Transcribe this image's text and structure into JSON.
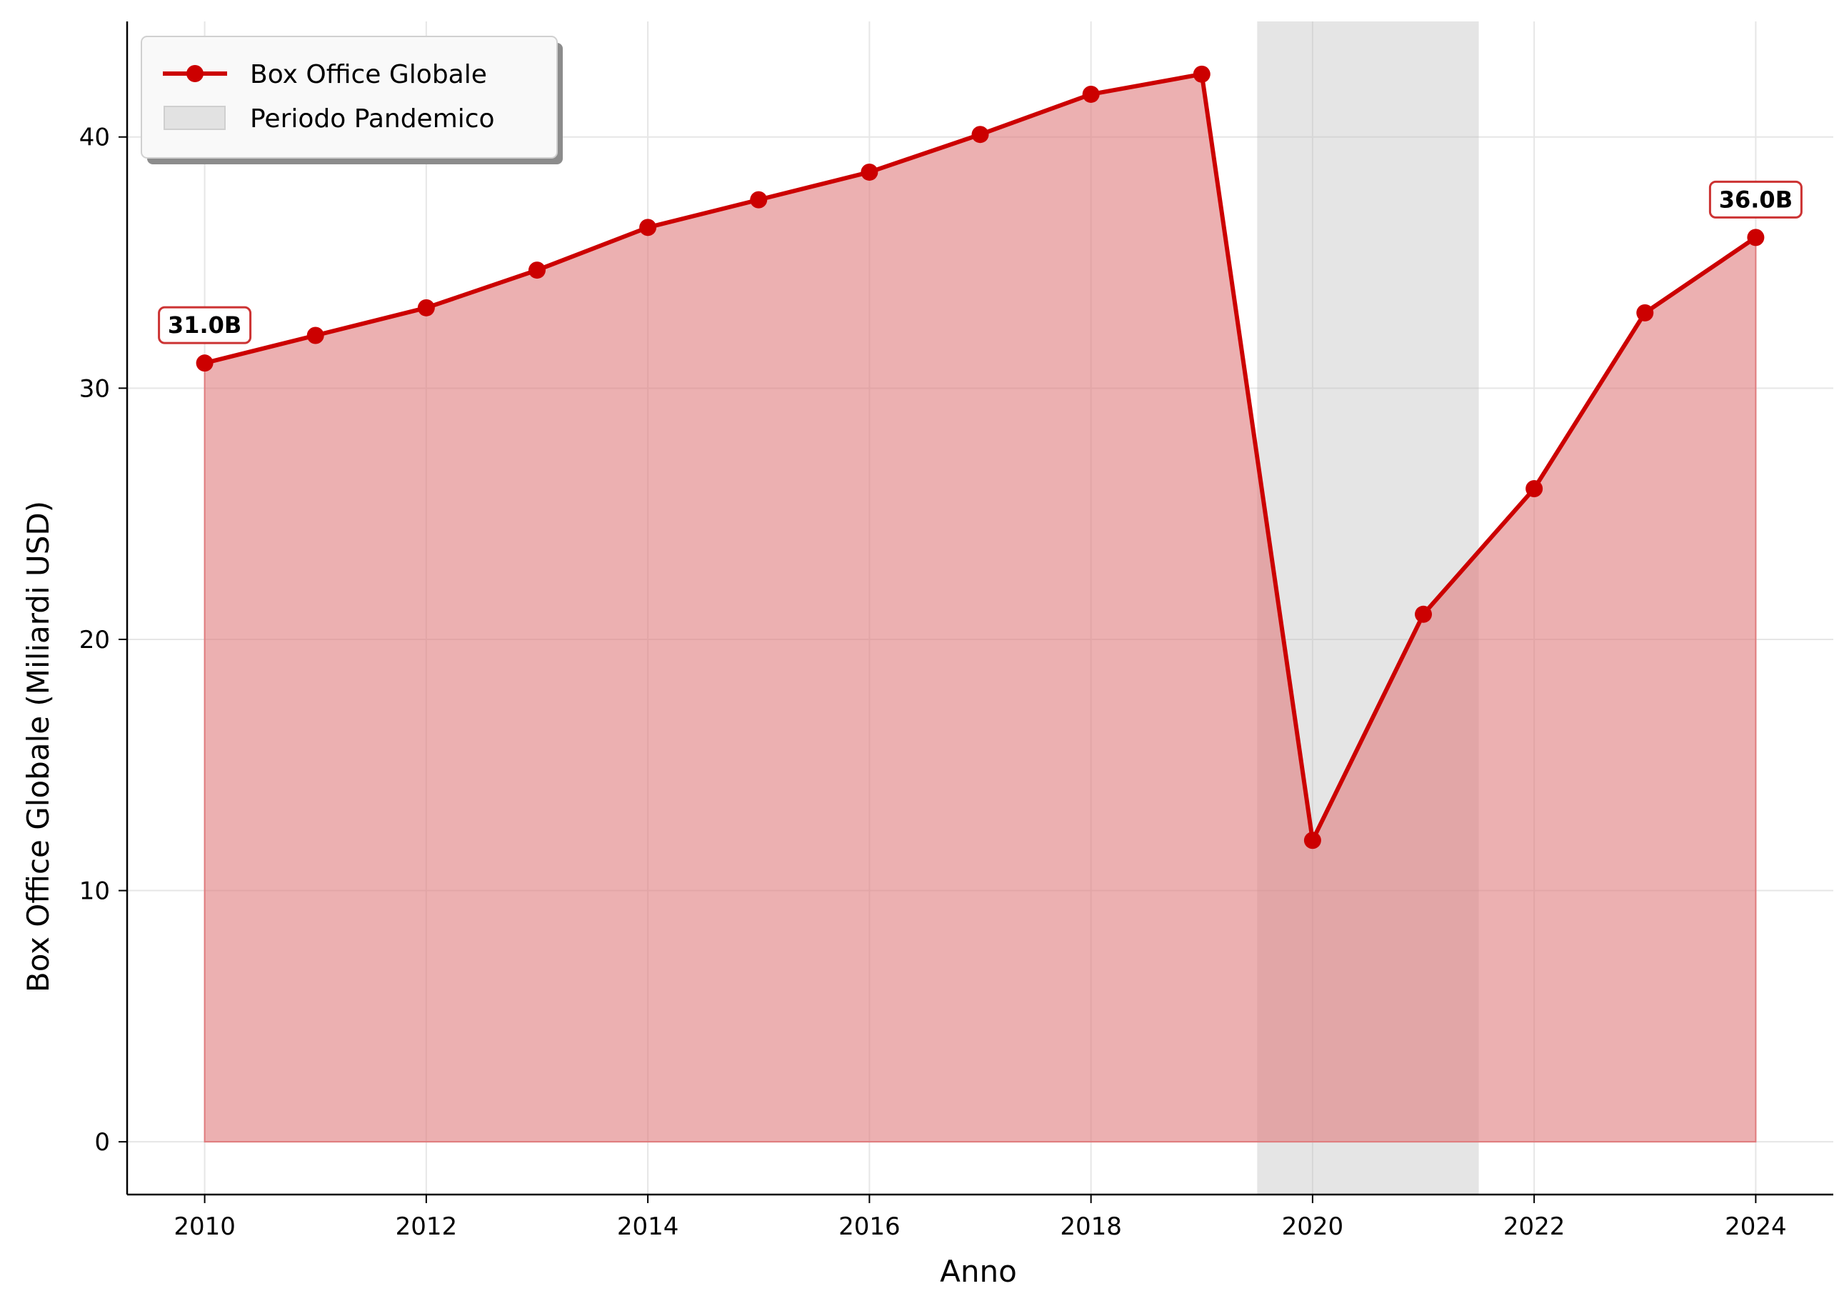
{
  "chart_data": {
    "type": "area",
    "xlabel": "Anno",
    "ylabel": "Box Office Globale (Miliardi USD)",
    "x": [
      2010,
      2011,
      2012,
      2013,
      2014,
      2015,
      2016,
      2017,
      2018,
      2019,
      2020,
      2021,
      2022,
      2023,
      2024
    ],
    "series": [
      {
        "name": "Box Office Globale",
        "color": "#cc0000",
        "fill_color": "#e07b7d",
        "values": [
          31.0,
          32.1,
          33.2,
          34.7,
          36.4,
          37.5,
          38.6,
          40.1,
          41.7,
          42.5,
          12.0,
          21.0,
          26.0,
          33.0,
          36.0
        ]
      }
    ],
    "shaded_region": {
      "name": "Periodo Pandemico",
      "x_start": 2019.5,
      "x_end": 2021.5,
      "color": "#bdbdbd"
    },
    "annotations": [
      {
        "x": 2010,
        "y": 31.0,
        "text": "31.0B"
      },
      {
        "x": 2024,
        "y": 36.0,
        "text": "36.0B"
      }
    ],
    "xlim": [
      2009.3,
      2024.7
    ],
    "ylim": [
      -2.1,
      44.6
    ],
    "xticks": [
      "2010",
      "2012",
      "2014",
      "2016",
      "2018",
      "2020",
      "2022",
      "2024"
    ],
    "yticks": [
      "0",
      "10",
      "20",
      "30",
      "40"
    ],
    "grid": true,
    "legend_position": "top-left"
  }
}
